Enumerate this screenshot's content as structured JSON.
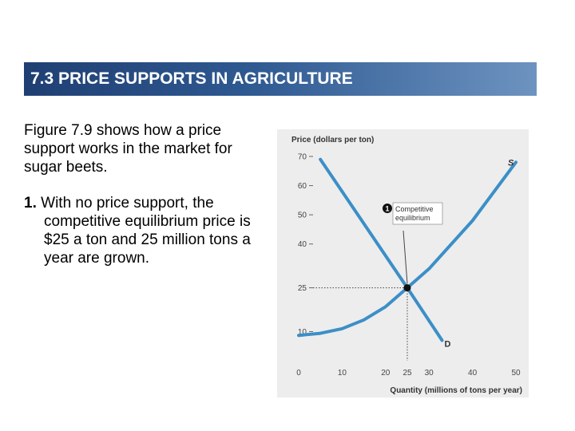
{
  "slide": {
    "title": "7.3 PRICE SUPPORTS IN AGRICULTURE",
    "para1": "Figure 7.9 shows how a price support works in the market for sugar beets.",
    "item1_number": "1.",
    "item1_text": "With no price support, the competitive equilibrium price is $25 a ton and 25 million tons a year are grown."
  },
  "chart_data": {
    "type": "line",
    "title": "",
    "xlabel": "Quantity (millions of tons per year)",
    "ylabel": "Price (dollars per ton)",
    "xlim": [
      0,
      50
    ],
    "ylim": [
      0,
      70
    ],
    "xticks": [
      0,
      10,
      20,
      25,
      30,
      40,
      50
    ],
    "yticks": [
      10,
      25,
      40,
      50,
      60,
      70
    ],
    "series": [
      {
        "name": "S",
        "color": "#3c8fc7",
        "points": [
          [
            0,
            8.7
          ],
          [
            5,
            9.4
          ],
          [
            10,
            11
          ],
          [
            15,
            14
          ],
          [
            20,
            18.5
          ],
          [
            25,
            25
          ],
          [
            30,
            31.5
          ],
          [
            40,
            48
          ],
          [
            50,
            68
          ]
        ]
      },
      {
        "name": "D",
        "color": "#3c8fc7",
        "points": [
          [
            5,
            69
          ],
          [
            25,
            25
          ],
          [
            33,
            7
          ]
        ]
      }
    ],
    "equilibrium": {
      "x": 25,
      "y": 25
    },
    "annotations": [
      {
        "number": "1",
        "text": [
          "Competitive",
          "equilibrium"
        ]
      }
    ],
    "grid": false
  }
}
